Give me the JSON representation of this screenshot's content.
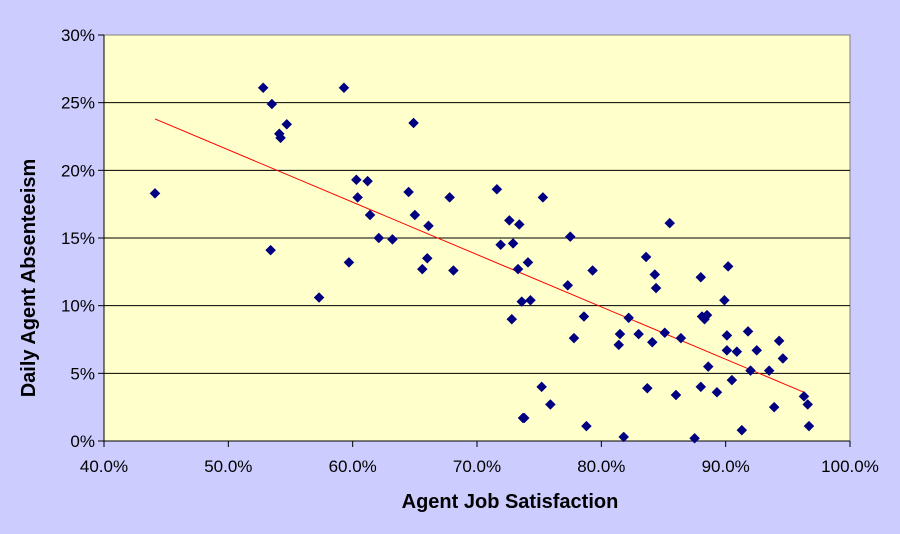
{
  "chart_data": {
    "type": "scatter",
    "title": "",
    "xlabel": "Agent Job Satisfaction",
    "ylabel": "Daily Agent Absenteeism",
    "xlim": [
      0.4,
      1.0
    ],
    "ylim": [
      0,
      0.3
    ],
    "x_ticks": [
      "40.0%",
      "50.0%",
      "60.0%",
      "70.0%",
      "80.0%",
      "90.0%",
      "100.0%"
    ],
    "y_ticks": [
      "0%",
      "5%",
      "10%",
      "15%",
      "20%",
      "25%",
      "30%"
    ],
    "grid": "horizontal",
    "legend": "none",
    "colors": {
      "background": "#ccccff",
      "plot_area": "#ffffcc",
      "marker": "#000080",
      "trendline": "#ff0000",
      "gridline": "#000000"
    },
    "trendline": {
      "type": "linear",
      "x": [
        0.441,
        0.963
      ],
      "y": [
        0.238,
        0.036
      ]
    },
    "series": [
      {
        "marker": "diamond",
        "x": [
          0.441,
          0.528,
          0.535,
          0.541,
          0.542,
          0.547,
          0.534,
          0.593,
          0.573,
          0.597,
          0.603,
          0.604,
          0.612,
          0.614,
          0.621,
          0.632,
          0.645,
          0.649,
          0.65,
          0.656,
          0.66,
          0.661,
          0.678,
          0.681,
          0.716,
          0.719,
          0.726,
          0.728,
          0.729,
          0.733,
          0.734,
          0.736,
          0.737,
          0.741,
          0.743,
          0.738,
          0.752,
          0.753,
          0.759,
          0.773,
          0.775,
          0.778,
          0.786,
          0.788,
          0.793,
          0.814,
          0.815,
          0.818,
          0.822,
          0.83,
          0.836,
          0.837,
          0.841,
          0.843,
          0.844,
          0.851,
          0.855,
          0.86,
          0.864,
          0.875,
          0.88,
          0.88,
          0.881,
          0.883,
          0.885,
          0.886,
          0.893,
          0.899,
          0.901,
          0.901,
          0.902,
          0.905,
          0.909,
          0.913,
          0.918,
          0.92,
          0.925,
          0.935,
          0.939,
          0.943,
          0.946,
          0.963,
          0.966,
          0.967
        ],
        "y": [
          0.183,
          0.261,
          0.249,
          0.227,
          0.224,
          0.234,
          0.141,
          0.261,
          0.106,
          0.132,
          0.193,
          0.18,
          0.192,
          0.167,
          0.15,
          0.149,
          0.184,
          0.235,
          0.167,
          0.127,
          0.135,
          0.159,
          0.18,
          0.126,
          0.186,
          0.145,
          0.163,
          0.09,
          0.146,
          0.127,
          0.16,
          0.103,
          0.017,
          0.132,
          0.104,
          0.017,
          0.04,
          0.18,
          0.027,
          0.115,
          0.151,
          0.076,
          0.092,
          0.011,
          0.126,
          0.071,
          0.079,
          0.003,
          0.091,
          0.079,
          0.136,
          0.039,
          0.073,
          0.123,
          0.113,
          0.08,
          0.161,
          0.034,
          0.076,
          0.002,
          0.04,
          0.121,
          0.092,
          0.09,
          0.093,
          0.055,
          0.036,
          0.104,
          0.078,
          0.067,
          0.129,
          0.045,
          0.066,
          0.008,
          0.081,
          0.052,
          0.067,
          0.052,
          0.025,
          0.074,
          0.061,
          0.033,
          0.027,
          0.011
        ]
      }
    ]
  }
}
